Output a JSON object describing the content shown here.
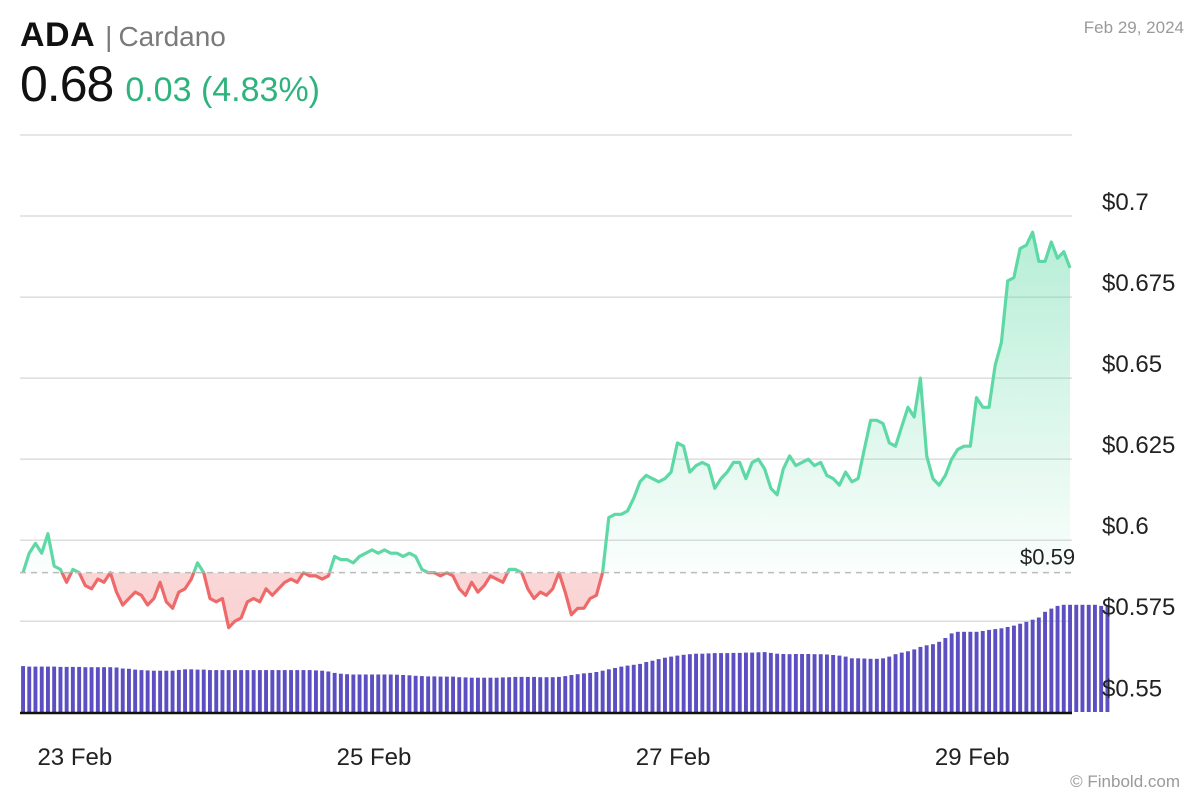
{
  "header": {
    "symbol": "ADA",
    "separator": "|",
    "name": "Cardano",
    "price": "0.68",
    "change": "0.03 (4.83%)",
    "date": "Feb 29, 2024",
    "watermark": "© Finbold.com"
  },
  "colors": {
    "up": "#5ed9a5",
    "down": "#ee6a6a",
    "volume": "#5b4fc1",
    "change_text": "#2fb37d",
    "grid": "#dddddd",
    "reference": "#bbbbbb"
  },
  "chart_data": {
    "type": "line",
    "title": "",
    "xlabel": "",
    "ylabel": "",
    "x_ticks": [
      {
        "label": "23 Feb",
        "index": 2
      },
      {
        "label": "25 Feb",
        "index": 50
      },
      {
        "label": "27 Feb",
        "index": 98
      },
      {
        "label": "29 Feb",
        "index": 146
      }
    ],
    "y_ticks": [
      0.55,
      0.575,
      0.6,
      0.625,
      0.65,
      0.675,
      0.7
    ],
    "y_tick_labels": [
      "$0.55",
      "$0.575",
      "$0.6",
      "$0.625",
      "$0.65",
      "$0.675",
      "$0.7"
    ],
    "ylim": [
      0.547,
      0.725
    ],
    "reference_value": 0.59,
    "reference_label": "$0.59",
    "grid": true,
    "price_series": [
      0.59,
      0.596,
      0.599,
      0.596,
      0.602,
      0.592,
      0.591,
      0.587,
      0.591,
      0.59,
      0.586,
      0.585,
      0.588,
      0.587,
      0.59,
      0.584,
      0.58,
      0.582,
      0.584,
      0.583,
      0.58,
      0.582,
      0.587,
      0.581,
      0.579,
      0.584,
      0.585,
      0.588,
      0.593,
      0.59,
      0.582,
      0.581,
      0.582,
      0.573,
      0.575,
      0.576,
      0.581,
      0.582,
      0.581,
      0.585,
      0.583,
      0.585,
      0.587,
      0.588,
      0.587,
      0.59,
      0.589,
      0.589,
      0.588,
      0.589,
      0.595,
      0.594,
      0.594,
      0.593,
      0.595,
      0.596,
      0.597,
      0.596,
      0.597,
      0.596,
      0.596,
      0.595,
      0.596,
      0.595,
      0.591,
      0.59,
      0.59,
      0.589,
      0.59,
      0.589,
      0.585,
      0.583,
      0.587,
      0.584,
      0.586,
      0.589,
      0.588,
      0.587,
      0.591,
      0.591,
      0.59,
      0.585,
      0.582,
      0.584,
      0.583,
      0.585,
      0.59,
      0.584,
      0.577,
      0.579,
      0.579,
      0.582,
      0.583,
      0.59,
      0.607,
      0.608,
      0.608,
      0.609,
      0.613,
      0.618,
      0.62,
      0.619,
      0.618,
      0.619,
      0.621,
      0.63,
      0.629,
      0.621,
      0.623,
      0.624,
      0.623,
      0.616,
      0.619,
      0.621,
      0.624,
      0.624,
      0.619,
      0.624,
      0.625,
      0.622,
      0.616,
      0.614,
      0.622,
      0.626,
      0.623,
      0.624,
      0.625,
      0.623,
      0.624,
      0.62,
      0.619,
      0.617,
      0.621,
      0.618,
      0.619,
      0.628,
      0.637,
      0.637,
      0.636,
      0.63,
      0.629,
      0.635,
      0.641,
      0.638,
      0.65,
      0.626,
      0.619,
      0.617,
      0.62,
      0.625,
      0.628,
      0.629,
      0.629,
      0.644,
      0.641,
      0.641,
      0.654,
      0.661,
      0.68,
      0.681,
      0.69,
      0.691,
      0.695,
      0.686,
      0.686,
      0.692,
      0.687,
      0.689,
      0.684
    ],
    "volume_series": [
      0.17,
      0.168,
      0.168,
      0.168,
      0.168,
      0.168,
      0.167,
      0.167,
      0.167,
      0.167,
      0.166,
      0.166,
      0.166,
      0.166,
      0.166,
      0.165,
      0.161,
      0.16,
      0.157,
      0.155,
      0.154,
      0.153,
      0.153,
      0.153,
      0.153,
      0.156,
      0.158,
      0.158,
      0.157,
      0.157,
      0.155,
      0.155,
      0.155,
      0.155,
      0.155,
      0.155,
      0.155,
      0.155,
      0.155,
      0.155,
      0.155,
      0.155,
      0.155,
      0.155,
      0.155,
      0.155,
      0.155,
      0.154,
      0.153,
      0.15,
      0.145,
      0.142,
      0.14,
      0.139,
      0.139,
      0.139,
      0.139,
      0.139,
      0.139,
      0.139,
      0.138,
      0.137,
      0.136,
      0.134,
      0.133,
      0.132,
      0.132,
      0.131,
      0.131,
      0.131,
      0.129,
      0.128,
      0.127,
      0.127,
      0.127,
      0.127,
      0.127,
      0.128,
      0.129,
      0.13,
      0.13,
      0.13,
      0.13,
      0.129,
      0.129,
      0.129,
      0.13,
      0.133,
      0.137,
      0.14,
      0.143,
      0.145,
      0.148,
      0.153,
      0.158,
      0.163,
      0.168,
      0.172,
      0.175,
      0.178,
      0.185,
      0.19,
      0.196,
      0.201,
      0.205,
      0.209,
      0.212,
      0.214,
      0.216,
      0.216,
      0.217,
      0.218,
      0.218,
      0.218,
      0.219,
      0.219,
      0.22,
      0.22,
      0.221,
      0.222,
      0.219,
      0.216,
      0.215,
      0.214,
      0.215,
      0.215,
      0.215,
      0.214,
      0.214,
      0.213,
      0.211,
      0.209,
      0.205,
      0.199,
      0.199,
      0.198,
      0.197,
      0.197,
      0.199,
      0.205,
      0.214,
      0.22,
      0.225,
      0.232,
      0.241,
      0.247,
      0.251,
      0.26,
      0.274,
      0.291,
      0.297,
      0.297,
      0.297,
      0.297,
      0.3,
      0.304,
      0.307,
      0.31,
      0.315,
      0.32,
      0.327,
      0.334,
      0.342,
      0.35,
      0.371,
      0.383,
      0.393,
      0.397,
      0.397,
      0.397,
      0.397,
      0.397,
      0.397,
      0.393,
      0.391
    ]
  }
}
